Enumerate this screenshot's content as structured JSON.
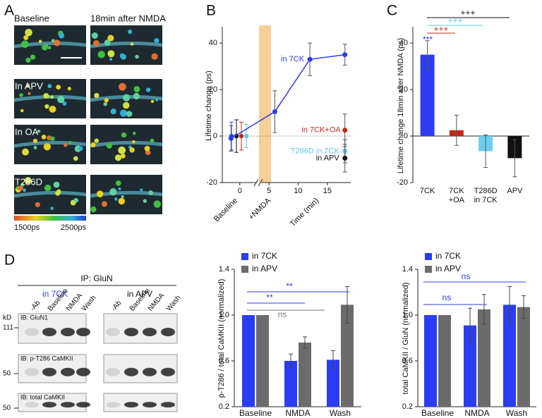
{
  "panel_labels": [
    "A",
    "B",
    "C",
    "D"
  ],
  "panel_a": {
    "headers": [
      "Baseline",
      "18min after NMDA"
    ],
    "row_labels": [
      "In APV",
      "In OA",
      "T286D"
    ],
    "scale_labels": [
      "1500ps",
      "2500ps"
    ]
  },
  "panel_d_blot": {
    "title": "IP: GluN",
    "groups": [
      "in 7CK",
      "in APV"
    ],
    "lanes": [
      "-Ab",
      "Baseline",
      "NMDA",
      "Wash"
    ],
    "kd": "kD",
    "markers": [
      "111",
      "50",
      "50"
    ],
    "blots": [
      "IB: GluN1",
      "IB: p-T286 CaMKII",
      "IB: total CaMKII"
    ]
  },
  "chart_data": [
    {
      "type": "line",
      "y_label": "Lifetime change (ps)",
      "x_label": "Time (min)",
      "x_markers": [
        "Baseline",
        "+NMDA"
      ],
      "xlim": [
        -3,
        19
      ],
      "xticks": [
        0,
        5,
        10,
        15
      ],
      "ylim": [
        -20,
        47
      ],
      "yticks": [
        -20,
        0,
        20,
        40
      ],
      "zero_line": true,
      "baseline": {
        "values": [
          0,
          0,
          0,
          0
        ],
        "errors": [
          6,
          7,
          6,
          5
        ],
        "colors": [
          "#2b3cf0",
          "#111111",
          "#c0281a",
          "#5ec8ee"
        ]
      },
      "series": [
        {
          "name": "in 7CK",
          "color": "#2b3cf0",
          "x": [
            -1.5,
            6,
            12,
            18
          ],
          "values": [
            -1,
            10.5,
            33,
            35
          ],
          "errors": [
            5.5,
            9,
            7,
            4.5
          ]
        },
        {
          "name": "in 7CK+OA",
          "color": "#c0281a",
          "x": [
            18
          ],
          "values": [
            2.5
          ],
          "errors": [
            7
          ]
        },
        {
          "name": "T286D in 7CK",
          "color": "#5ec8ee",
          "x": [
            18
          ],
          "values": [
            -6.5
          ],
          "errors": [
            5
          ]
        },
        {
          "name": "in APV",
          "color": "#111111",
          "x": [
            18
          ],
          "values": [
            -9.5
          ],
          "errors": [
            6
          ]
        }
      ]
    },
    {
      "type": "bar",
      "y_label": "Lifetime change  18min after NMDA (ps)",
      "categories": [
        [
          "7CK"
        ],
        [
          "7CK",
          "+OA"
        ],
        [
          "T286D",
          "in 7CK"
        ],
        [
          "APV"
        ]
      ],
      "values": [
        35,
        2.5,
        -6.5,
        -9.5
      ],
      "errors": [
        6,
        6.5,
        7,
        8
      ],
      "colors": [
        "#2b3cf0",
        "#c0281a",
        "#6dcff0",
        "#111111"
      ],
      "ylim": [
        -20,
        47
      ],
      "yticks": [
        -20,
        0,
        20,
        40
      ],
      "annotations": [
        {
          "text": "+++",
          "color": "#111111"
        },
        {
          "text": "+++",
          "color": "#5ec8ee"
        },
        {
          "text": "+++",
          "color": "#c0281a"
        },
        {
          "text": "***",
          "color": "#2b3cf0"
        }
      ]
    },
    {
      "type": "grouped_bar",
      "y_label": "p-T286 / total CaMKII (normalized)",
      "categories": [
        "Baseline",
        "NMDA",
        "Wash"
      ],
      "series": [
        {
          "name": "in 7CK",
          "color": "#2b3cf5",
          "values": [
            1.0,
            0.6,
            0.61
          ],
          "errors": [
            0,
            0.06,
            0.08
          ]
        },
        {
          "name": "in APV",
          "color": "#6b6b6b",
          "values": [
            1.0,
            0.76,
            1.09
          ],
          "errors": [
            0,
            0.05,
            0.16
          ]
        }
      ],
      "ylim": [
        0.2,
        1.4
      ],
      "yticks": [
        0.2,
        0.6,
        {
          "value": 1,
          "label": "1.0"
        },
        1.4
      ],
      "annotations": [
        {
          "text": "**",
          "color": "#2b3cf0"
        },
        {
          "text": "**",
          "color": "#2b3cf0"
        },
        {
          "text": "ns",
          "color": "#777777"
        }
      ]
    },
    {
      "type": "grouped_bar",
      "y_label": "total CaMKII / GluN (normalized)",
      "categories": [
        "Baseline",
        "NMDA",
        "Wash"
      ],
      "series": [
        {
          "name": "in 7CK",
          "color": "#2b3cf5",
          "values": [
            1.0,
            0.91,
            1.09
          ],
          "errors": [
            0,
            0.15,
            0.16
          ]
        },
        {
          "name": "in APV",
          "color": "#6b6b6b",
          "values": [
            1.0,
            1.05,
            1.07
          ],
          "errors": [
            0,
            0.13,
            0.1
          ]
        }
      ],
      "ylim": [
        0.2,
        1.4
      ],
      "yticks": [
        0.2,
        0.6,
        {
          "value": 1,
          "label": "1.0"
        },
        1.4
      ],
      "annotations": [
        {
          "text": "ns",
          "color": "#2b3cf0"
        },
        {
          "text": "ns",
          "color": "#2b3cf0"
        }
      ]
    }
  ]
}
